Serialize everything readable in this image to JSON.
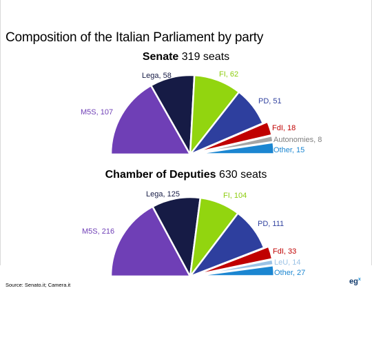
{
  "title": "Composition of the Italian Parliament by party",
  "source": "Source: Senato.it; Camera.it",
  "logo": {
    "text": "eg",
    "mark": "x"
  },
  "chart_data": [
    {
      "type": "pie",
      "variant": "semicircle",
      "chamber": "Senate",
      "seats_label": "319 seats",
      "total": 319,
      "slices": [
        {
          "label": "M5S, 107",
          "party": "M5S",
          "value": 107,
          "color": "#6f3fb6",
          "text_color": "#6f3fb6",
          "explode": 0
        },
        {
          "label": "Lega, 58",
          "party": "Lega",
          "value": 58,
          "color": "#161b45",
          "text_color": "#161b45",
          "explode": 0
        },
        {
          "label": "FI, 62",
          "party": "FI",
          "value": 62,
          "color": "#92d50f",
          "text_color": "#8ccc0c",
          "explode": 0
        },
        {
          "label": "PD, 51",
          "party": "PD",
          "value": 51,
          "color": "#2e3f9e",
          "text_color": "#2e3f9e",
          "explode": 0
        },
        {
          "label": "FdI, 18",
          "party": "FdI",
          "value": 18,
          "color": "#c00000",
          "text_color": "#c00000",
          "explode": 0.06
        },
        {
          "label": "Autonomies, 8",
          "party": "Autonomies",
          "value": 8,
          "color": "#a6a6a6",
          "text_color": "#7f7f7f",
          "explode": 0.06
        },
        {
          "label": "Other, 15",
          "party": "Other",
          "value": 15,
          "color": "#1b86d1",
          "text_color": "#1b86d1",
          "explode": 0.06
        }
      ]
    },
    {
      "type": "pie",
      "variant": "semicircle",
      "chamber": "Chamber of Deputies",
      "seats_label": "630 seats",
      "total": 630,
      "slices": [
        {
          "label": "M5S, 216",
          "party": "M5S",
          "value": 216,
          "color": "#6f3fb6",
          "text_color": "#6f3fb6",
          "explode": 0
        },
        {
          "label": "Lega, 125",
          "party": "Lega",
          "value": 125,
          "color": "#161b45",
          "text_color": "#161b45",
          "explode": 0
        },
        {
          "label": "FI, 104",
          "party": "FI",
          "value": 104,
          "color": "#92d50f",
          "text_color": "#8ccc0c",
          "explode": 0
        },
        {
          "label": "PD, 111",
          "party": "PD",
          "value": 111,
          "color": "#2e3f9e",
          "text_color": "#2e3f9e",
          "explode": 0
        },
        {
          "label": "FdI, 33",
          "party": "FdI",
          "value": 33,
          "color": "#c00000",
          "text_color": "#c00000",
          "explode": 0.06
        },
        {
          "label": "LeU, 14",
          "party": "LeU",
          "value": 14,
          "color": "#9cc3e6",
          "text_color": "#9cc3e6",
          "explode": 0.06
        },
        {
          "label": "Other, 27",
          "party": "Other",
          "value": 27,
          "color": "#1b86d1",
          "text_color": "#1b86d1",
          "explode": 0.06
        }
      ]
    }
  ]
}
